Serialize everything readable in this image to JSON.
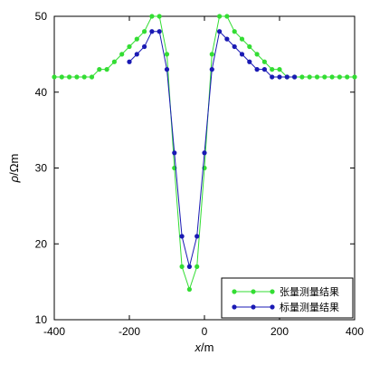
{
  "chart_data": {
    "type": "line",
    "xlabel": "x/m",
    "ylabel": "ρ/Ωm",
    "xlim": [
      -400,
      400
    ],
    "ylim": [
      10,
      50
    ],
    "xticks": [
      -400,
      -200,
      0,
      200,
      400
    ],
    "yticks": [
      10,
      20,
      30,
      40,
      50
    ],
    "grid": false,
    "legend_position": "bottom-right",
    "series": [
      {
        "name": "张量测量结果",
        "color": "#33dd33",
        "marker": "circle",
        "x": [
          -400,
          -380,
          -360,
          -340,
          -320,
          -300,
          -280,
          -260,
          -240,
          -220,
          -200,
          -180,
          -160,
          -140,
          -120,
          -100,
          -80,
          -60,
          -40,
          -20,
          0,
          20,
          40,
          60,
          80,
          100,
          120,
          140,
          160,
          180,
          200,
          220,
          240,
          260,
          280,
          300,
          320,
          340,
          360,
          380,
          400
        ],
        "values": [
          42,
          42,
          42,
          42,
          42,
          42,
          43,
          43,
          44,
          45,
          46,
          47,
          48,
          50,
          50,
          45,
          30,
          17,
          14,
          17,
          30,
          45,
          50,
          50,
          48,
          47,
          46,
          45,
          44,
          43,
          43,
          42,
          42,
          42,
          42,
          42,
          42,
          42,
          42,
          42,
          42
        ]
      },
      {
        "name": "标量测量结果",
        "color": "#1a1ab4",
        "marker": "circle",
        "x": [
          -200,
          -180,
          -160,
          -140,
          -120,
          -100,
          -80,
          -60,
          -40,
          -20,
          0,
          20,
          40,
          60,
          80,
          100,
          120,
          140,
          160,
          180,
          200,
          220,
          240
        ],
        "values": [
          44,
          45,
          46,
          48,
          48,
          43,
          32,
          21,
          17,
          21,
          32,
          43,
          48,
          47,
          46,
          45,
          44,
          43,
          43,
          42,
          42,
          42,
          42
        ]
      }
    ]
  },
  "labels": {
    "xlabel_main": "x",
    "xlabel_unit": "/m",
    "ylabel_main": "ρ",
    "ylabel_unit": "/Ωm"
  }
}
